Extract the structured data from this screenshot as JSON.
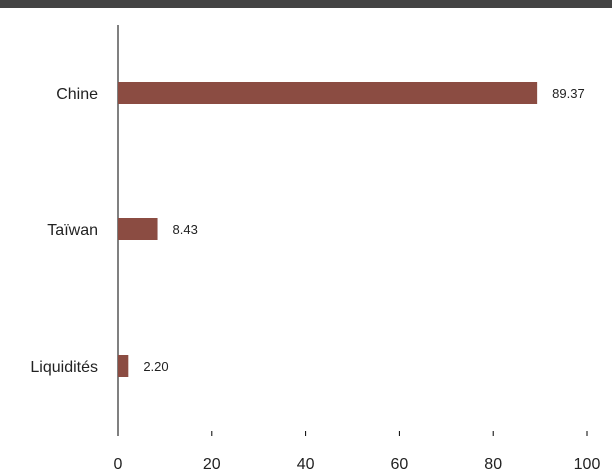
{
  "colors": {
    "bar": "#8B4C42",
    "axis": "#000000",
    "header_rule": "#444444"
  },
  "chart_data": {
    "type": "bar",
    "orientation": "horizontal",
    "categories": [
      "Chine",
      "Taïwan",
      "Liquidités"
    ],
    "values": [
      89.37,
      8.43,
      2.2
    ],
    "value_labels": [
      "89.37",
      "8.43",
      "2.20"
    ],
    "xlim": [
      0,
      100
    ],
    "xticks": [
      0,
      20,
      40,
      60,
      80,
      100
    ],
    "grid": false,
    "legend": "none"
  }
}
